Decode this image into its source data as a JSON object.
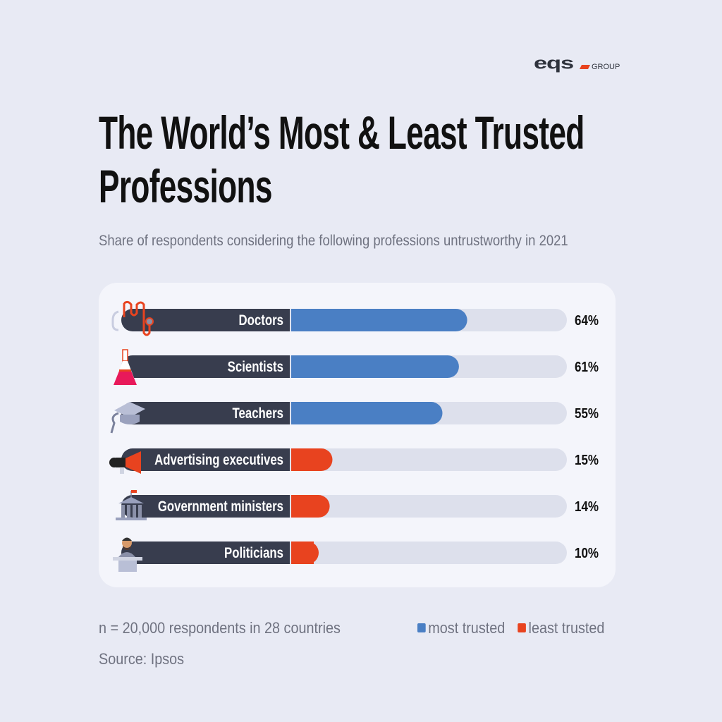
{
  "brand": {
    "logo_text": "eqs",
    "logo_suffix": "GROUP"
  },
  "header": {
    "title": "The World’s Most & Least Trusted Professions",
    "subtitle": "Share of respondents considering the following professions untrustworthy in 2021"
  },
  "chart_data": {
    "type": "bar",
    "orientation": "horizontal",
    "title": "The World’s Most & Least Trusted Professions",
    "subtitle": "Share of respondents considering the following professions untrustworthy in 2021",
    "categories": [
      "Doctors",
      "Scientists",
      "Teachers",
      "Advertising executives",
      "Government ministers",
      "Politicians"
    ],
    "values": [
      64,
      61,
      55,
      15,
      14,
      10
    ],
    "value_labels": [
      "64%",
      "61%",
      "55%",
      "15%",
      "14%",
      "10%"
    ],
    "groups": [
      "most trusted",
      "most trusted",
      "most trusted",
      "least trusted",
      "least trusted",
      "least trusted"
    ],
    "icons": [
      "stethoscope-icon",
      "flask-icon",
      "graduation-cap-icon",
      "megaphone-icon",
      "government-building-icon",
      "politician-podium-icon"
    ],
    "xlim": [
      0,
      100
    ],
    "unit": "%",
    "grid": false,
    "legend": {
      "placement": "bottom-right",
      "entries": [
        {
          "label": "most trusted",
          "color": "#4a7fc4"
        },
        {
          "label": "least trusted",
          "color": "#e8431f"
        }
      ]
    }
  },
  "colors": {
    "most_trusted": "#4a7fc4",
    "least_trusted": "#e8431f",
    "label_bar": "#383d4e",
    "track": "#dde0ec"
  },
  "footer": {
    "note": "n = 20,000 respondents in 28 countries",
    "source": "Source: Ipsos"
  }
}
